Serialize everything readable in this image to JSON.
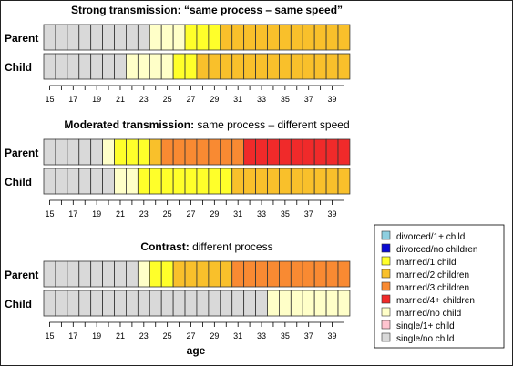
{
  "chart_data": {
    "type": "sequence-index-plot",
    "xlabel": "age",
    "x_ticks": [
      15,
      17,
      19,
      21,
      23,
      25,
      27,
      29,
      31,
      33,
      35,
      37,
      39
    ],
    "age_start": 15,
    "age_end": 40,
    "state_colors": {
      "divorced/1+ child": "#8ecfe0",
      "divorced/no children": "#0a0ad2",
      "married/1 child": "#ffff2a",
      "married/2 children": "#f9c02b",
      "married/3 children": "#f98a32",
      "married/4+ children": "#f02a2a",
      "married/no child": "#ffffc8",
      "single/1+ child": "#ffc4d0",
      "single/no child": "#d9d9d9"
    },
    "legend": [
      "divorced/1+ child",
      "divorced/no children",
      "married/1 child",
      "married/2 children",
      "married/3 children",
      "married/4+ children",
      "married/no child",
      "single/1+ child",
      "single/no child"
    ],
    "panels": [
      {
        "title_bold": "Strong transmission: “same process – same speed”",
        "title_rest": "",
        "rows": [
          {
            "label": "Parent",
            "segments": [
              {
                "state": "single/no child",
                "from": 15,
                "to": 24
              },
              {
                "state": "married/no child",
                "from": 24,
                "to": 27
              },
              {
                "state": "married/1 child",
                "from": 27,
                "to": 30
              },
              {
                "state": "married/2 children",
                "from": 30,
                "to": 41
              }
            ]
          },
          {
            "label": "Child",
            "segments": [
              {
                "state": "single/no child",
                "from": 15,
                "to": 22
              },
              {
                "state": "married/no child",
                "from": 22,
                "to": 26
              },
              {
                "state": "married/1 child",
                "from": 26,
                "to": 28
              },
              {
                "state": "married/2 children",
                "from": 28,
                "to": 41
              }
            ]
          }
        ]
      },
      {
        "title_bold": "Moderated transmission:",
        "title_rest": " same process – different speed",
        "rows": [
          {
            "label": "Parent",
            "segments": [
              {
                "state": "single/no child",
                "from": 15,
                "to": 20
              },
              {
                "state": "married/no child",
                "from": 20,
                "to": 21
              },
              {
                "state": "married/1 child",
                "from": 21,
                "to": 24
              },
              {
                "state": "married/2 children",
                "from": 24,
                "to": 25
              },
              {
                "state": "married/3 children",
                "from": 25,
                "to": 32
              },
              {
                "state": "married/4+ children",
                "from": 32,
                "to": 41
              }
            ]
          },
          {
            "label": "Child",
            "segments": [
              {
                "state": "single/no child",
                "from": 15,
                "to": 21
              },
              {
                "state": "married/no child",
                "from": 21,
                "to": 23
              },
              {
                "state": "married/1 child",
                "from": 23,
                "to": 31
              },
              {
                "state": "married/2 children",
                "from": 31,
                "to": 41
              }
            ]
          }
        ]
      },
      {
        "title_bold": "Contrast:",
        "title_rest": " different process",
        "rows": [
          {
            "label": "Parent",
            "segments": [
              {
                "state": "single/no child",
                "from": 15,
                "to": 23
              },
              {
                "state": "married/no child",
                "from": 23,
                "to": 24
              },
              {
                "state": "married/1 child",
                "from": 24,
                "to": 26
              },
              {
                "state": "married/2 children",
                "from": 26,
                "to": 31
              },
              {
                "state": "married/3 children",
                "from": 31,
                "to": 41
              }
            ]
          },
          {
            "label": "Child",
            "segments": [
              {
                "state": "single/no child",
                "from": 15,
                "to": 34
              },
              {
                "state": "married/no child",
                "from": 34,
                "to": 41
              }
            ]
          }
        ]
      }
    ]
  }
}
